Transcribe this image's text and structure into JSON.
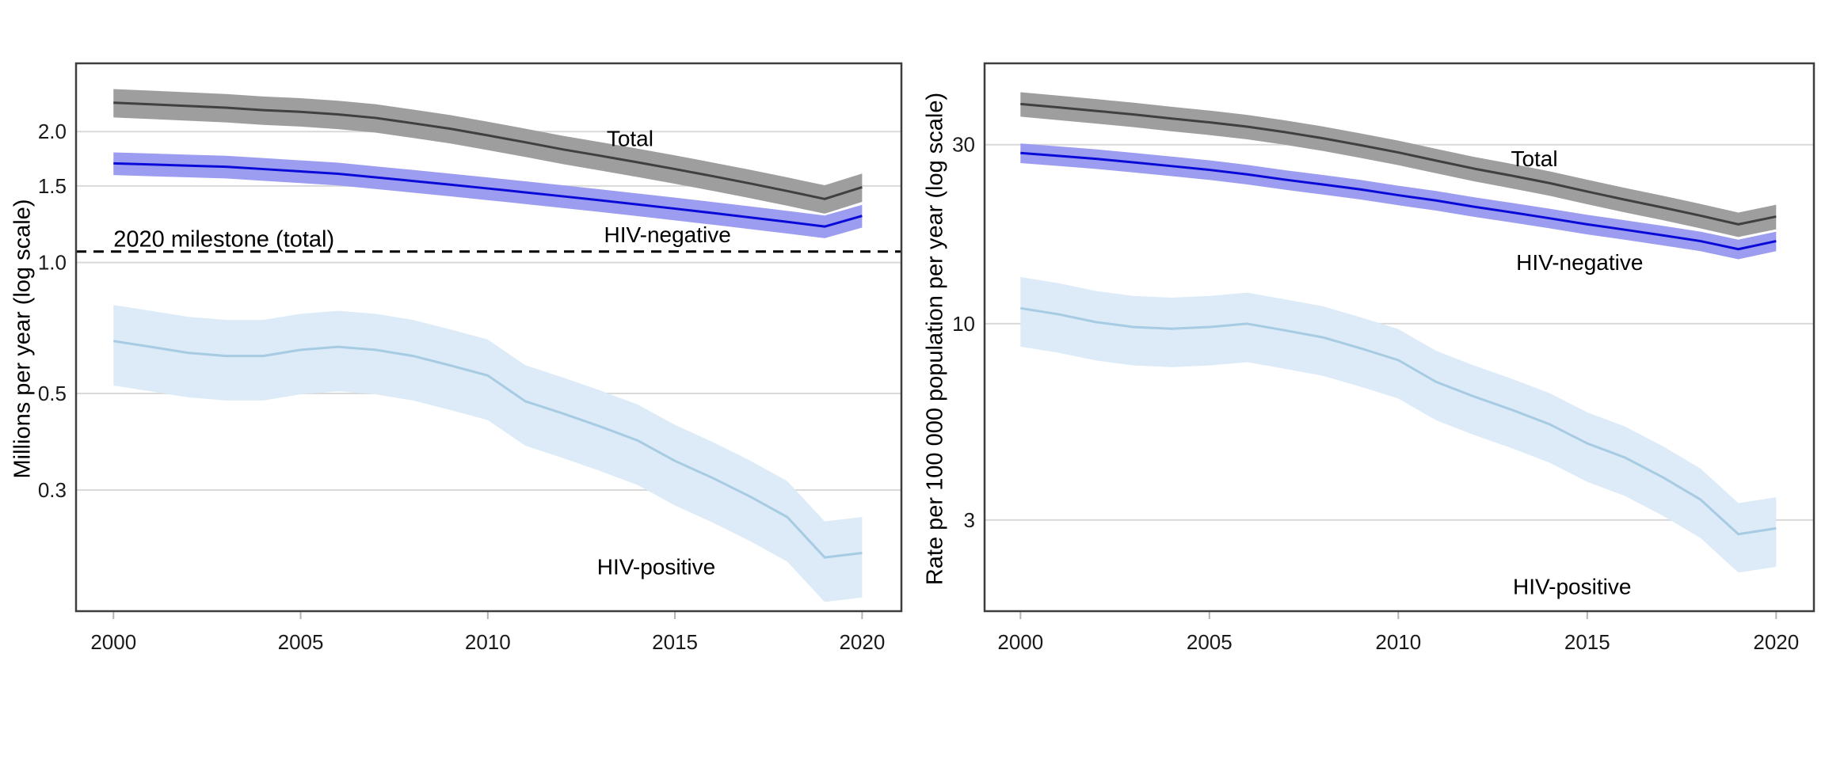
{
  "figure": {
    "description": "Two line charts with shaded uncertainty bands showing TB deaths on log scales, 2000-2020",
    "background_color": "#ffffff",
    "grid_color": "#d9d9d9",
    "border_color": "#3d3d3d",
    "tick_color": "#b3b3b3",
    "text_color": "#1a1a1a"
  },
  "chart_data": [
    {
      "type": "line",
      "ylabel": "Millions per year (log scale)",
      "xlabel": "",
      "grid": "horizontal-only",
      "legend_position": "inline-annotations",
      "x": [
        2000,
        2001,
        2002,
        2003,
        2004,
        2005,
        2006,
        2007,
        2008,
        2009,
        2010,
        2011,
        2012,
        2013,
        2014,
        2015,
        2016,
        2017,
        2018,
        2019,
        2020
      ],
      "xticks": [
        2000,
        2005,
        2010,
        2015,
        2020
      ],
      "xlim": [
        1999.0,
        2021.05
      ],
      "ylim": [
        0.158,
        2.87
      ],
      "yticks": [
        {
          "value": 2.0,
          "label": "2.0"
        },
        {
          "value": 1.5,
          "label": "1.5"
        },
        {
          "value": 1.0,
          "label": "1.0"
        },
        {
          "value": 0.5,
          "label": "0.5"
        },
        {
          "value": 0.3,
          "label": "0.3"
        }
      ],
      "series": [
        {
          "name": "total",
          "label": "Total",
          "line_color": "#404040",
          "band_color": "#9e9e9e",
          "band_fraction": 0.075,
          "values": [
            2.33,
            2.31,
            2.29,
            2.27,
            2.24,
            2.22,
            2.19,
            2.15,
            2.09,
            2.03,
            1.96,
            1.89,
            1.82,
            1.76,
            1.7,
            1.64,
            1.58,
            1.52,
            1.46,
            1.4,
            1.49
          ]
        },
        {
          "name": "hiv_negative",
          "label": "HIV-negative",
          "line_color": "#0a0ad8",
          "band_color": "#9c9cf0",
          "band_fraction": 0.06,
          "values": [
            1.69,
            1.68,
            1.67,
            1.66,
            1.64,
            1.62,
            1.6,
            1.57,
            1.54,
            1.51,
            1.48,
            1.45,
            1.42,
            1.39,
            1.36,
            1.33,
            1.3,
            1.27,
            1.24,
            1.21,
            1.28
          ]
        },
        {
          "name": "hiv_positive",
          "label": "HIV-positive",
          "line_color": "#a6cbe3",
          "band_color": "#dcebf7",
          "band_fraction": 0.21,
          "values": [
            0.66,
            0.64,
            0.62,
            0.61,
            0.61,
            0.63,
            0.64,
            0.63,
            0.61,
            0.58,
            0.55,
            0.48,
            0.45,
            0.42,
            0.39,
            0.35,
            0.32,
            0.29,
            0.26,
            0.21,
            0.215
          ]
        }
      ],
      "annotations": [
        {
          "text": "Total",
          "x": 2013.8,
          "y": 1.93,
          "anchor": "middle"
        },
        {
          "text": "HIV-negative",
          "x": 2014.8,
          "y": 1.16,
          "anchor": "middle"
        },
        {
          "text": "HIV-positive",
          "x": 2014.5,
          "y": 0.2,
          "anchor": "middle"
        }
      ],
      "milestone": {
        "value": 1.06,
        "label": "2020 milestone (total)",
        "label_x": 2000,
        "label_y": 1.135,
        "label_anchor": "start"
      }
    },
    {
      "type": "line",
      "ylabel": "Rate per 100 000 population per year (log scale)",
      "xlabel": "",
      "grid": "horizontal-only",
      "legend_position": "inline-annotations",
      "x": [
        2000,
        2001,
        2002,
        2003,
        2004,
        2005,
        2006,
        2007,
        2008,
        2009,
        2010,
        2011,
        2012,
        2013,
        2014,
        2015,
        2016,
        2017,
        2018,
        2019,
        2020
      ],
      "xticks": [
        2000,
        2005,
        2010,
        2015,
        2020
      ],
      "xlim": [
        1999.05,
        2021.0
      ],
      "ylim": [
        1.715,
        49.4
      ],
      "yticks": [
        {
          "value": 30,
          "label": "30"
        },
        {
          "value": 10,
          "label": "10"
        },
        {
          "value": 3,
          "label": "3"
        }
      ],
      "series": [
        {
          "name": "total",
          "label": "Total",
          "line_color": "#404040",
          "band_color": "#9e9e9e",
          "band_fraction": 0.075,
          "values": [
            38.5,
            37.7,
            36.9,
            36.1,
            35.2,
            34.4,
            33.5,
            32.4,
            31.2,
            29.9,
            28.6,
            27.2,
            25.9,
            24.8,
            23.7,
            22.5,
            21.4,
            20.4,
            19.4,
            18.4,
            19.3
          ]
        },
        {
          "name": "hiv_negative",
          "label": "HIV-negative",
          "line_color": "#0a0ad8",
          "band_color": "#9c9cf0",
          "band_fraction": 0.06,
          "values": [
            28.5,
            28.0,
            27.5,
            26.9,
            26.3,
            25.7,
            25.0,
            24.2,
            23.5,
            22.8,
            22.0,
            21.3,
            20.5,
            19.8,
            19.1,
            18.4,
            17.8,
            17.2,
            16.6,
            15.8,
            16.6
          ]
        },
        {
          "name": "hiv_positive",
          "label": "HIV-positive",
          "line_color": "#a6cbe3",
          "band_color": "#dcebf7",
          "band_fraction": 0.21,
          "values": [
            11.0,
            10.6,
            10.1,
            9.8,
            9.7,
            9.8,
            10.0,
            9.6,
            9.2,
            8.6,
            8.0,
            7.0,
            6.4,
            5.9,
            5.4,
            4.8,
            4.4,
            3.9,
            3.4,
            2.75,
            2.85
          ]
        }
      ],
      "annotations": [
        {
          "text": "Total",
          "x": 2013.6,
          "y": 27.6,
          "anchor": "middle"
        },
        {
          "text": "HIV-negative",
          "x": 2014.8,
          "y": 14.6,
          "anchor": "middle"
        },
        {
          "text": "HIV-positive",
          "x": 2014.6,
          "y": 2.0,
          "anchor": "middle"
        }
      ],
      "milestone": null
    }
  ]
}
